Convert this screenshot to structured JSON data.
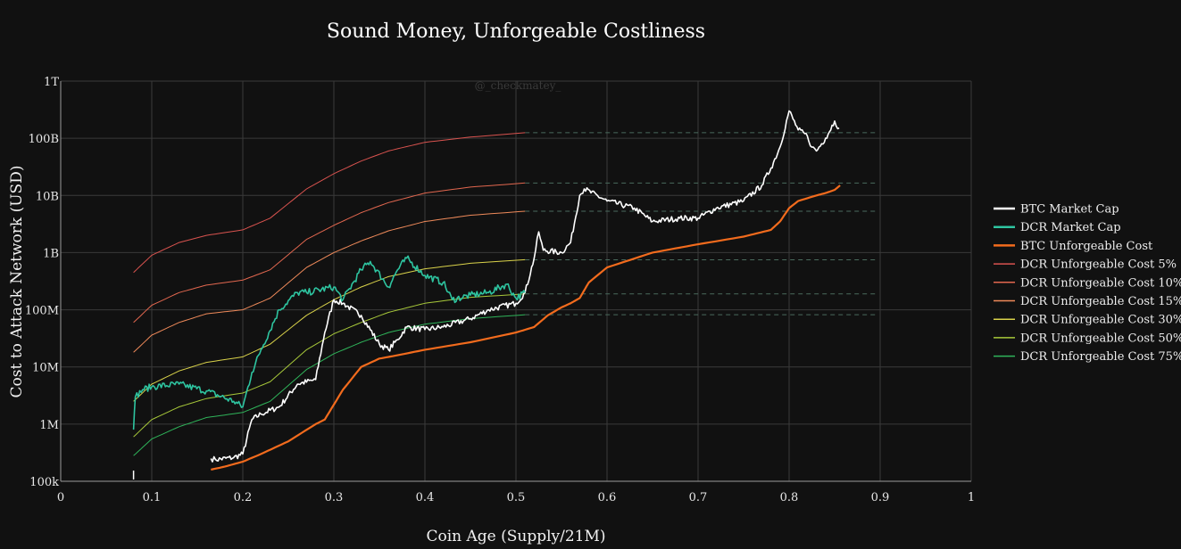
{
  "chart_data": {
    "type": "line",
    "title": "Sound Money, Unforgeable Costliness",
    "xlabel": "Coin Age (Supply/21M)",
    "ylabel": "Cost to Attack Network (USD)",
    "watermark": "@_checkmatey_",
    "xlim": [
      0,
      1
    ],
    "ylim": [
      100000,
      1000000000000
    ],
    "yscale": "log",
    "grid": true,
    "legend_position": "right",
    "x_ticks": [
      {
        "v": 0,
        "label": "0"
      },
      {
        "v": 0.1,
        "label": "0.1"
      },
      {
        "v": 0.2,
        "label": "0.2"
      },
      {
        "v": 0.3,
        "label": "0.3"
      },
      {
        "v": 0.4,
        "label": "0.4"
      },
      {
        "v": 0.5,
        "label": "0.5"
      },
      {
        "v": 0.6,
        "label": "0.6"
      },
      {
        "v": 0.7,
        "label": "0.7"
      },
      {
        "v": 0.8,
        "label": "0.8"
      },
      {
        "v": 0.9,
        "label": "0.9"
      },
      {
        "v": 1,
        "label": "1"
      }
    ],
    "y_ticks": [
      {
        "v": 100000,
        "label": "100k"
      },
      {
        "v": 1000000,
        "label": "1M"
      },
      {
        "v": 10000000,
        "label": "10M"
      },
      {
        "v": 100000000,
        "label": "100M"
      },
      {
        "v": 1000000000,
        "label": "1B"
      },
      {
        "v": 10000000000,
        "label": "10B"
      },
      {
        "v": 100000000000,
        "label": "100B"
      },
      {
        "v": 1000000000000,
        "label": "1T"
      }
    ],
    "series": [
      {
        "name": "BTC Market Cap",
        "color": "#ffffff",
        "width": 1.6,
        "noise": 0.05,
        "x": [
          0.165,
          0.17,
          0.19,
          0.2,
          0.21,
          0.22,
          0.24,
          0.26,
          0.28,
          0.29,
          0.3,
          0.31,
          0.33,
          0.35,
          0.36,
          0.37,
          0.38,
          0.4,
          0.42,
          0.45,
          0.47,
          0.5,
          0.51,
          0.52,
          0.525,
          0.53,
          0.55,
          0.56,
          0.57,
          0.575,
          0.6,
          0.63,
          0.65,
          0.68,
          0.7,
          0.72,
          0.75,
          0.77,
          0.78,
          0.79,
          0.8,
          0.81,
          0.82,
          0.825,
          0.83,
          0.84,
          0.85,
          0.855
        ],
        "y": [
          250000,
          240000,
          260000,
          300000,
          1200000,
          1500000,
          2000000,
          5000000,
          6000000,
          40000000,
          150000000,
          130000000,
          80000000,
          25000000,
          20000000,
          30000000,
          50000000,
          45000000,
          50000000,
          70000000,
          100000000,
          130000000,
          200000000,
          800000000,
          2300000000,
          1100000000,
          1000000000,
          1500000000,
          10000000000,
          13000000000,
          8000000000,
          6000000000,
          3500000000,
          4000000000,
          4000000000,
          6000000000,
          8000000000,
          15000000000,
          30000000000,
          70000000000,
          300000000000,
          140000000000,
          110000000000,
          70000000000,
          60000000000,
          100000000000,
          200000000000,
          150000000000
        ]
      },
      {
        "name": "DCR Market Cap",
        "color": "#2ec4a0",
        "width": 1.6,
        "noise": 0.06,
        "x": [
          0.08,
          0.082,
          0.09,
          0.1,
          0.13,
          0.16,
          0.19,
          0.2,
          0.21,
          0.22,
          0.24,
          0.26,
          0.27,
          0.3,
          0.31,
          0.33,
          0.34,
          0.36,
          0.37,
          0.38,
          0.4,
          0.42,
          0.43,
          0.45,
          0.47,
          0.49,
          0.5,
          0.51
        ],
        "y": [
          800000,
          3000000,
          4000000,
          4500000,
          5000000,
          3800000,
          2500000,
          2000000,
          8000000,
          20000000,
          100000000,
          200000000,
          200000000,
          250000000,
          150000000,
          500000000,
          700000000,
          250000000,
          500000000,
          800000000,
          400000000,
          300000000,
          150000000,
          180000000,
          200000000,
          280000000,
          160000000,
          200000000
        ]
      },
      {
        "name": "BTC Unforgeable Cost",
        "color": "#f26b1d",
        "width": 2.2,
        "noise": 0,
        "x": [
          0.165,
          0.18,
          0.2,
          0.22,
          0.25,
          0.28,
          0.29,
          0.31,
          0.33,
          0.35,
          0.37,
          0.4,
          0.45,
          0.5,
          0.52,
          0.535,
          0.55,
          0.56,
          0.57,
          0.58,
          0.6,
          0.65,
          0.7,
          0.75,
          0.78,
          0.79,
          0.8,
          0.81,
          0.83,
          0.84,
          0.85,
          0.856
        ],
        "y": [
          160000,
          180000,
          220000,
          300000,
          500000,
          1000000,
          1200000,
          4000000,
          10000000,
          14000000,
          16000000,
          20000000,
          27000000,
          40000000,
          50000000,
          80000000,
          110000000,
          130000000,
          160000000,
          300000000,
          550000000,
          1000000000,
          1400000000,
          1900000000,
          2500000000,
          3500000000,
          6000000000,
          8000000000,
          10000000000,
          11000000000,
          12500000000,
          15000000000
        ]
      },
      {
        "name": "DCR Unforgeable Cost 5%",
        "color": "#d9534f",
        "width": 1,
        "noise": 0,
        "proj": 125000000000.0,
        "x": [
          0.08,
          0.1,
          0.13,
          0.16,
          0.2,
          0.23,
          0.27,
          0.3,
          0.33,
          0.36,
          0.4,
          0.45,
          0.51
        ],
        "y": [
          450000000,
          900000000,
          1500000000,
          2000000000,
          2500000000,
          4000000000,
          13000000000,
          24000000000,
          40000000000,
          60000000000,
          85000000000,
          105000000000,
          125000000000
        ]
      },
      {
        "name": "DCR Unforgeable Cost 10%",
        "color": "#e2674f",
        "width": 1,
        "noise": 0,
        "proj": 16500000000.0,
        "x": [
          0.08,
          0.1,
          0.13,
          0.16,
          0.2,
          0.23,
          0.27,
          0.3,
          0.33,
          0.36,
          0.4,
          0.45,
          0.51
        ],
        "y": [
          60000000,
          120000000,
          200000000,
          270000000,
          330000000,
          500000000,
          1700000000,
          3000000000,
          5000000000,
          7500000000,
          11000000000,
          14000000000,
          16500000000
        ]
      },
      {
        "name": "DCR Unforgeable Cost 15%",
        "color": "#ef8a5a",
        "width": 1,
        "noise": 0,
        "proj": 5300000000.0,
        "x": [
          0.08,
          0.1,
          0.13,
          0.16,
          0.2,
          0.23,
          0.27,
          0.3,
          0.33,
          0.36,
          0.4,
          0.45,
          0.51
        ],
        "y": [
          18000000,
          36000000,
          60000000,
          85000000,
          100000000,
          160000000,
          550000000,
          1000000000,
          1600000000,
          2400000000,
          3500000000,
          4500000000,
          5300000000
        ]
      },
      {
        "name": "DCR Unforgeable Cost 30%",
        "color": "#d9d24a",
        "width": 1,
        "noise": 0,
        "proj": 750000000.0,
        "x": [
          0.08,
          0.1,
          0.13,
          0.16,
          0.2,
          0.23,
          0.27,
          0.3,
          0.33,
          0.36,
          0.4,
          0.45,
          0.51
        ],
        "y": [
          2500000,
          5000000,
          8500000,
          12000000,
          15000000,
          25000000,
          80000000,
          150000000,
          250000000,
          380000000,
          520000000,
          650000000,
          750000000
        ]
      },
      {
        "name": "DCR Unforgeable Cost 50%",
        "color": "#a8c93a",
        "width": 1,
        "noise": 0,
        "proj": 190000000.0,
        "x": [
          0.08,
          0.1,
          0.13,
          0.16,
          0.2,
          0.23,
          0.27,
          0.3,
          0.33,
          0.36,
          0.4,
          0.45,
          0.51
        ],
        "y": [
          600000,
          1200000,
          2000000,
          2800000,
          3500000,
          5500000,
          20000000,
          38000000,
          60000000,
          90000000,
          130000000,
          165000000,
          190000000
        ]
      },
      {
        "name": "DCR Unforgeable Cost 75%",
        "color": "#2fb45a",
        "width": 1,
        "noise": 0,
        "proj": 82000000.0,
        "x": [
          0.08,
          0.1,
          0.13,
          0.16,
          0.2,
          0.23,
          0.27,
          0.3,
          0.33,
          0.36,
          0.4,
          0.45,
          0.51
        ],
        "y": [
          280000,
          550000,
          900000,
          1300000,
          1600000,
          2500000,
          9000000,
          17000000,
          27000000,
          40000000,
          56000000,
          70000000,
          82000000
        ]
      }
    ]
  }
}
